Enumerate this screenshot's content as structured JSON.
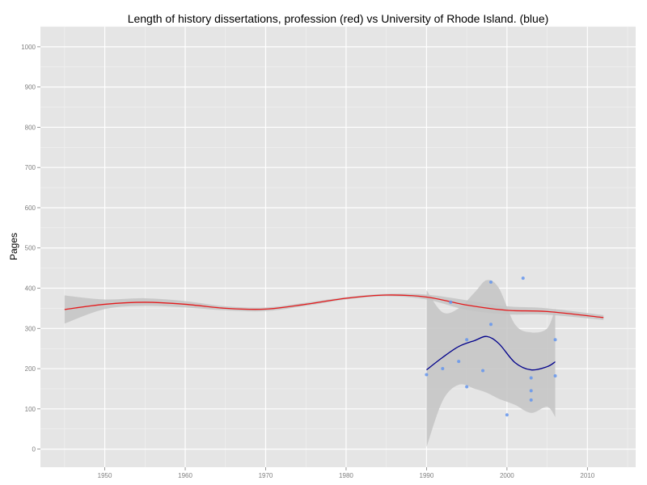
{
  "chart_data": {
    "type": "scatter",
    "title": "Length of history dissertations, profession (red) vs University of Rhode Island. (blue)",
    "xlabel": "",
    "ylabel": "Pages",
    "xlim": [
      1942,
      2016
    ],
    "ylim": [
      -45,
      1050
    ],
    "x_ticks": [
      1950,
      1960,
      1970,
      1980,
      1990,
      2000,
      2010
    ],
    "y_ticks": [
      0,
      100,
      200,
      300,
      400,
      500,
      600,
      700,
      800,
      900,
      1000
    ],
    "grid": true,
    "colors": {
      "panel_background": "#e5e5e5",
      "grid_major": "#ffffff",
      "grid_minor": "#f2f2f2",
      "ribbon": "#c4c4c4",
      "profession_line": "#e41a1c",
      "uri_line": "#00008b",
      "uri_points": "#6495ed",
      "tick_text": "#7f7f7f"
    },
    "series": [
      {
        "kind": "smooth",
        "color_key": "profession_line",
        "x": [
          1945,
          1950,
          1955,
          1960,
          1965,
          1970,
          1975,
          1980,
          1985,
          1990,
          1995,
          2000,
          2005,
          2012
        ],
        "y": [
          347,
          360,
          365,
          360,
          350,
          348,
          360,
          375,
          383,
          378,
          358,
          345,
          342,
          327
        ],
        "ribbon_upper": [
          382,
          372,
          375,
          368,
          355,
          352,
          364,
          378,
          386,
          384,
          370,
          355,
          350,
          333
        ],
        "ribbon_lower": [
          312,
          348,
          356,
          352,
          345,
          343,
          356,
          372,
          380,
          372,
          346,
          335,
          334,
          321
        ]
      },
      {
        "kind": "smooth",
        "color_key": "uri_line",
        "x": [
          1990,
          1992,
          1994,
          1996,
          1997.5,
          1999,
          2001,
          2003,
          2005,
          2006
        ],
        "y": [
          197,
          228,
          255,
          270,
          280,
          262,
          215,
          197,
          205,
          217
        ],
        "ribbon_upper": [
          395,
          340,
          350,
          390,
          420,
          400,
          310,
          290,
          300,
          350
        ],
        "ribbon_lower": [
          5,
          120,
          160,
          150,
          140,
          125,
          110,
          90,
          105,
          80
        ]
      },
      {
        "kind": "points",
        "color_key": "uri_points",
        "x": [
          1990,
          1992,
          1993,
          1994,
          1995,
          1995,
          1997,
          1998,
          1998,
          2000,
          2002,
          2003,
          2003,
          2003,
          2006,
          2006
        ],
        "y": [
          185,
          200,
          365,
          218,
          272,
          155,
          195,
          415,
          310,
          85,
          425,
          177,
          145,
          122,
          272,
          182
        ]
      }
    ]
  }
}
